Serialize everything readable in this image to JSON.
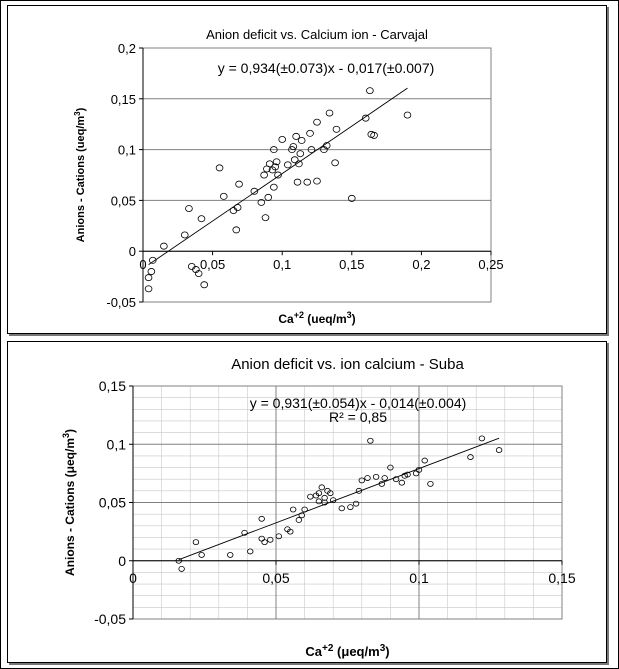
{
  "chart_data": [
    {
      "type": "scatter",
      "title": "Anion deficit vs. Calcium ion - Carvajal",
      "equation": "y = 0,934(±0.073)x - 0,017(±0.007)",
      "r2_label": "",
      "xlabel_base": "Ca",
      "xlabel_sup": "+2",
      "xlabel_rest": " (ueq/m",
      "xlabel_sup2": "3",
      "xlabel_end": ")",
      "ylabel_main": "Anions - Cations (ueq/m",
      "ylabel_sup": "3",
      "ylabel_end": ")",
      "xlim": [
        0,
        0.25
      ],
      "ylim": [
        -0.05,
        0.2
      ],
      "xticks": [
        0,
        0.05,
        0.1,
        0.15,
        0.2,
        0.25
      ],
      "xtick_labels": [
        "0",
        "0,05",
        "0,1",
        "0,15",
        "0,2",
        "0,25"
      ],
      "yticks": [
        -0.05,
        0,
        0.05,
        0.1,
        0.15,
        0.2
      ],
      "ytick_labels": [
        "-0,05",
        "0",
        "0,05",
        "0,1",
        "0,15",
        "0,2"
      ],
      "minor_grid": false,
      "fit": {
        "slope": 0.934,
        "intercept": -0.017,
        "x_range": [
          0.004,
          0.19
        ]
      },
      "points": [
        [
          0.004,
          -0.026
        ],
        [
          0.004,
          -0.037
        ],
        [
          0.006,
          -0.02
        ],
        [
          0.007,
          -0.009
        ],
        [
          0.015,
          0.005
        ],
        [
          0.03,
          0.016
        ],
        [
          0.033,
          0.042
        ],
        [
          0.035,
          -0.015
        ],
        [
          0.038,
          -0.018
        ],
        [
          0.04,
          -0.022
        ],
        [
          0.042,
          0.032
        ],
        [
          0.044,
          -0.033
        ],
        [
          0.055,
          0.082
        ],
        [
          0.058,
          0.054
        ],
        [
          0.065,
          0.04
        ],
        [
          0.067,
          0.021
        ],
        [
          0.068,
          0.043
        ],
        [
          0.069,
          0.066
        ],
        [
          0.08,
          0.059
        ],
        [
          0.085,
          0.048
        ],
        [
          0.087,
          0.075
        ],
        [
          0.088,
          0.033
        ],
        [
          0.089,
          0.081
        ],
        [
          0.09,
          0.053
        ],
        [
          0.091,
          0.086
        ],
        [
          0.093,
          0.08
        ],
        [
          0.094,
          0.063
        ],
        [
          0.095,
          0.083
        ],
        [
          0.094,
          0.1
        ],
        [
          0.096,
          0.088
        ],
        [
          0.097,
          0.075
        ],
        [
          0.1,
          0.11
        ],
        [
          0.104,
          0.085
        ],
        [
          0.107,
          0.1
        ],
        [
          0.108,
          0.103
        ],
        [
          0.109,
          0.09
        ],
        [
          0.11,
          0.113
        ],
        [
          0.111,
          0.068
        ],
        [
          0.112,
          0.086
        ],
        [
          0.113,
          0.096
        ],
        [
          0.114,
          0.109
        ],
        [
          0.118,
          0.068
        ],
        [
          0.12,
          0.116
        ],
        [
          0.121,
          0.1
        ],
        [
          0.125,
          0.069
        ],
        [
          0.125,
          0.127
        ],
        [
          0.13,
          0.1
        ],
        [
          0.132,
          0.104
        ],
        [
          0.134,
          0.136
        ],
        [
          0.138,
          0.087
        ],
        [
          0.139,
          0.12
        ],
        [
          0.15,
          0.052
        ],
        [
          0.16,
          0.131
        ],
        [
          0.163,
          0.158
        ],
        [
          0.164,
          0.115
        ],
        [
          0.166,
          0.114
        ],
        [
          0.19,
          0.134
        ]
      ]
    },
    {
      "type": "scatter",
      "title": "Anion deficit vs. ion calcium - Suba",
      "equation": "y = 0,931(±0.054)x - 0,014(±0.004)",
      "r2_label": "R² = 0,85",
      "xlabel_base": "Ca",
      "xlabel_sup": "+2",
      "xlabel_rest": " (μeq/m",
      "xlabel_sup2": "3",
      "xlabel_end": ")",
      "ylabel_main": "Anions - Cations (μeq/m",
      "ylabel_sup": "3",
      "ylabel_end": ")",
      "xlim": [
        0,
        0.15
      ],
      "ylim": [
        -0.05,
        0.15
      ],
      "xticks": [
        0,
        0.05,
        0.1,
        0.15
      ],
      "xtick_labels": [
        "0",
        "0,05",
        "0,1",
        "0,15"
      ],
      "yticks": [
        -0.05,
        0,
        0.05,
        0.1,
        0.15
      ],
      "ytick_labels": [
        "-0,05",
        "0",
        "0,05",
        "0,1",
        "0,15"
      ],
      "minor_grid": true,
      "fit": {
        "slope": 0.931,
        "intercept": -0.014,
        "x_range": [
          0.016,
          0.128
        ]
      },
      "points": [
        [
          0.016,
          0.0
        ],
        [
          0.017,
          -0.007
        ],
        [
          0.022,
          0.016
        ],
        [
          0.024,
          0.005
        ],
        [
          0.034,
          0.005
        ],
        [
          0.039,
          0.024
        ],
        [
          0.041,
          0.008
        ],
        [
          0.045,
          0.036
        ],
        [
          0.045,
          0.019
        ],
        [
          0.046,
          0.016
        ],
        [
          0.048,
          0.018
        ],
        [
          0.051,
          0.021
        ],
        [
          0.054,
          0.027
        ],
        [
          0.055,
          0.025
        ],
        [
          0.056,
          0.044
        ],
        [
          0.058,
          0.035
        ],
        [
          0.059,
          0.039
        ],
        [
          0.06,
          0.044
        ],
        [
          0.062,
          0.055
        ],
        [
          0.064,
          0.056
        ],
        [
          0.065,
          0.051
        ],
        [
          0.065,
          0.058
        ],
        [
          0.066,
          0.063
        ],
        [
          0.067,
          0.05
        ],
        [
          0.067,
          0.054
        ],
        [
          0.068,
          0.06
        ],
        [
          0.069,
          0.058
        ],
        [
          0.07,
          0.052
        ],
        [
          0.073,
          0.045
        ],
        [
          0.076,
          0.046
        ],
        [
          0.078,
          0.049
        ],
        [
          0.079,
          0.06
        ],
        [
          0.08,
          0.069
        ],
        [
          0.082,
          0.071
        ],
        [
          0.083,
          0.103
        ],
        [
          0.085,
          0.072
        ],
        [
          0.087,
          0.066
        ],
        [
          0.088,
          0.071
        ],
        [
          0.09,
          0.08
        ],
        [
          0.092,
          0.07
        ],
        [
          0.094,
          0.067
        ],
        [
          0.095,
          0.073
        ],
        [
          0.096,
          0.074
        ],
        [
          0.099,
          0.075
        ],
        [
          0.1,
          0.078
        ],
        [
          0.102,
          0.086
        ],
        [
          0.104,
          0.066
        ],
        [
          0.118,
          0.089
        ],
        [
          0.122,
          0.105
        ],
        [
          0.128,
          0.095
        ]
      ]
    }
  ]
}
